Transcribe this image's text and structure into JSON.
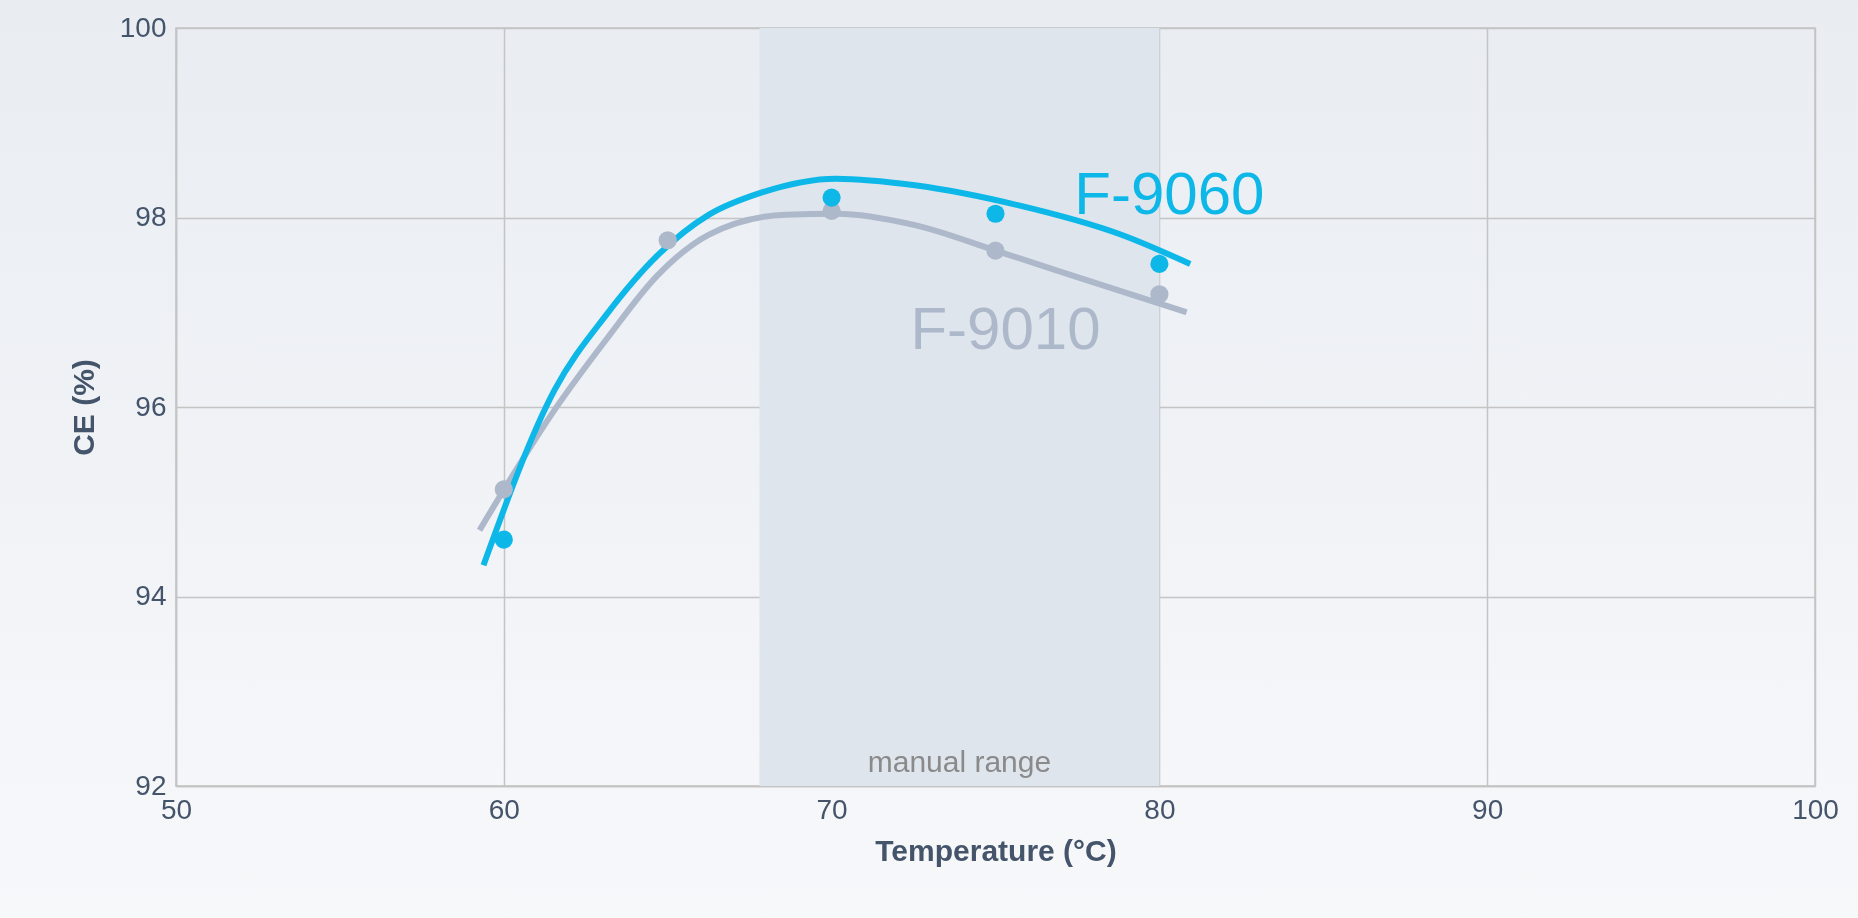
{
  "chart_data": {
    "type": "scatter",
    "xlabel": "Temperature (°C)",
    "ylabel": "CE (%)",
    "xlim": [
      50,
      100
    ],
    "ylim": [
      92,
      100
    ],
    "xticks": [
      50,
      60,
      70,
      80,
      90,
      100
    ],
    "yticks": [
      92,
      94,
      96,
      98,
      100
    ],
    "grid": true,
    "bands": [
      {
        "axis": "x",
        "from": 67.8,
        "to": 80,
        "label": "manual range",
        "color": "#dfe5ed"
      }
    ],
    "series": [
      {
        "type": "line",
        "color": "#adb8ca",
        "x": [
          59.26,
          61.55,
          63.12,
          64.69,
          66.26,
          68.61,
          70.14,
          72.54,
          75.1,
          78.04,
          80.83
        ],
        "values": [
          94.7,
          95.97,
          96.71,
          97.39,
          97.82,
          98.03,
          98.04,
          97.92,
          97.64,
          97.31,
          97.0
        ]
      },
      {
        "type": "line",
        "color": "#0db8e8",
        "x": [
          59.38,
          61.55,
          63.12,
          64.69,
          66.26,
          67.83,
          70.14,
          72.54,
          75.68,
          78.82,
          80.94
        ],
        "values": [
          94.33,
          96.18,
          96.97,
          97.6,
          98.03,
          98.26,
          98.41,
          98.34,
          98.13,
          97.82,
          97.51
        ]
      },
      {
        "name": "F-9010",
        "marker": "circle",
        "color": "#adb8ca",
        "x": [
          60,
          65,
          70,
          75,
          80
        ],
        "values": [
          95.13,
          97.76,
          98.07,
          97.65,
          97.19
        ]
      },
      {
        "name": "F-9060",
        "marker": "circle",
        "color": "#0db8e8",
        "x": [
          60,
          65,
          70,
          75,
          80
        ],
        "values": [
          94.6,
          null,
          98.21,
          98.04,
          97.51
        ]
      }
    ]
  }
}
